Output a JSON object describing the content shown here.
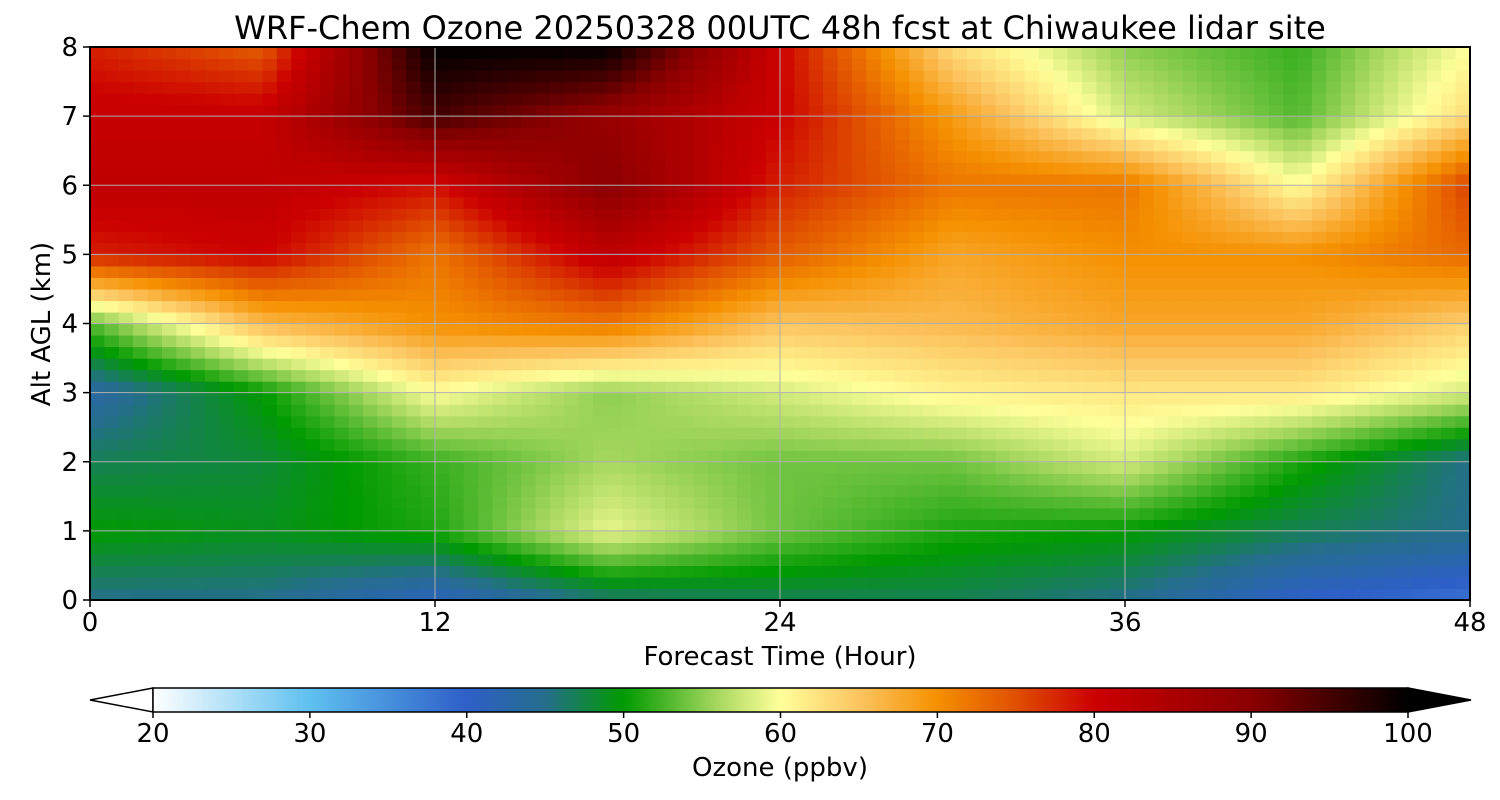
{
  "chart_data": {
    "type": "heatmap",
    "title": "WRF-Chem Ozone  20250328 00UTC 48h fcst at Chiwaukee lidar site",
    "xlabel": "Forecast Time (Hour)",
    "ylabel": "Alt AGL (km)",
    "xlim": [
      0,
      48
    ],
    "ylim": [
      0,
      8
    ],
    "xticks": [
      0,
      12,
      24,
      36,
      48
    ],
    "yticks": [
      0,
      1,
      2,
      3,
      4,
      5,
      6,
      7,
      8
    ],
    "grid": true,
    "colorbar": {
      "label": "Ozone  (ppbv)",
      "min": 20,
      "max": 100,
      "ticks": [
        20,
        30,
        40,
        50,
        60,
        70,
        80,
        90,
        100
      ],
      "extend": "both",
      "orientation": "horizontal",
      "stops": [
        {
          "v": 20,
          "color": "#ffffff"
        },
        {
          "v": 30,
          "color": "#5fc0f0"
        },
        {
          "v": 40,
          "color": "#2e5fc8"
        },
        {
          "v": 45,
          "color": "#256e8c"
        },
        {
          "v": 50,
          "color": "#009a00"
        },
        {
          "v": 56,
          "color": "#a8d860"
        },
        {
          "v": 60,
          "color": "#ffff9a"
        },
        {
          "v": 65,
          "color": "#fcc460"
        },
        {
          "v": 70,
          "color": "#f59000"
        },
        {
          "v": 75,
          "color": "#e04f00"
        },
        {
          "v": 80,
          "color": "#cc0000"
        },
        {
          "v": 90,
          "color": "#8a0000"
        },
        {
          "v": 100,
          "color": "#000000"
        }
      ]
    },
    "x": [
      0,
      6,
      12,
      18,
      24,
      30,
      36,
      42,
      48
    ],
    "y": [
      0,
      1,
      2,
      3,
      4,
      5,
      6,
      7,
      8
    ],
    "z": [
      [
        45,
        45,
        41,
        46,
        47,
        47,
        45,
        40,
        38
      ],
      [
        50,
        49,
        51,
        59,
        54,
        51,
        50,
        47,
        45
      ],
      [
        47,
        48,
        52,
        56,
        54,
        54,
        58,
        51,
        45
      ],
      [
        43,
        50,
        60,
        55,
        58,
        61,
        62,
        62,
        58
      ],
      [
        53,
        66,
        70,
        72,
        65,
        66,
        68,
        68,
        64
      ],
      [
        78,
        80,
        72,
        82,
        74,
        68,
        70,
        70,
        73
      ],
      [
        82,
        82,
        79,
        90,
        78,
        72,
        72,
        60,
        76
      ],
      [
        81,
        81,
        95,
        88,
        80,
        69,
        58,
        53,
        63
      ],
      [
        78,
        74,
        100,
        100,
        80,
        63,
        55,
        52,
        60
      ]
    ]
  }
}
